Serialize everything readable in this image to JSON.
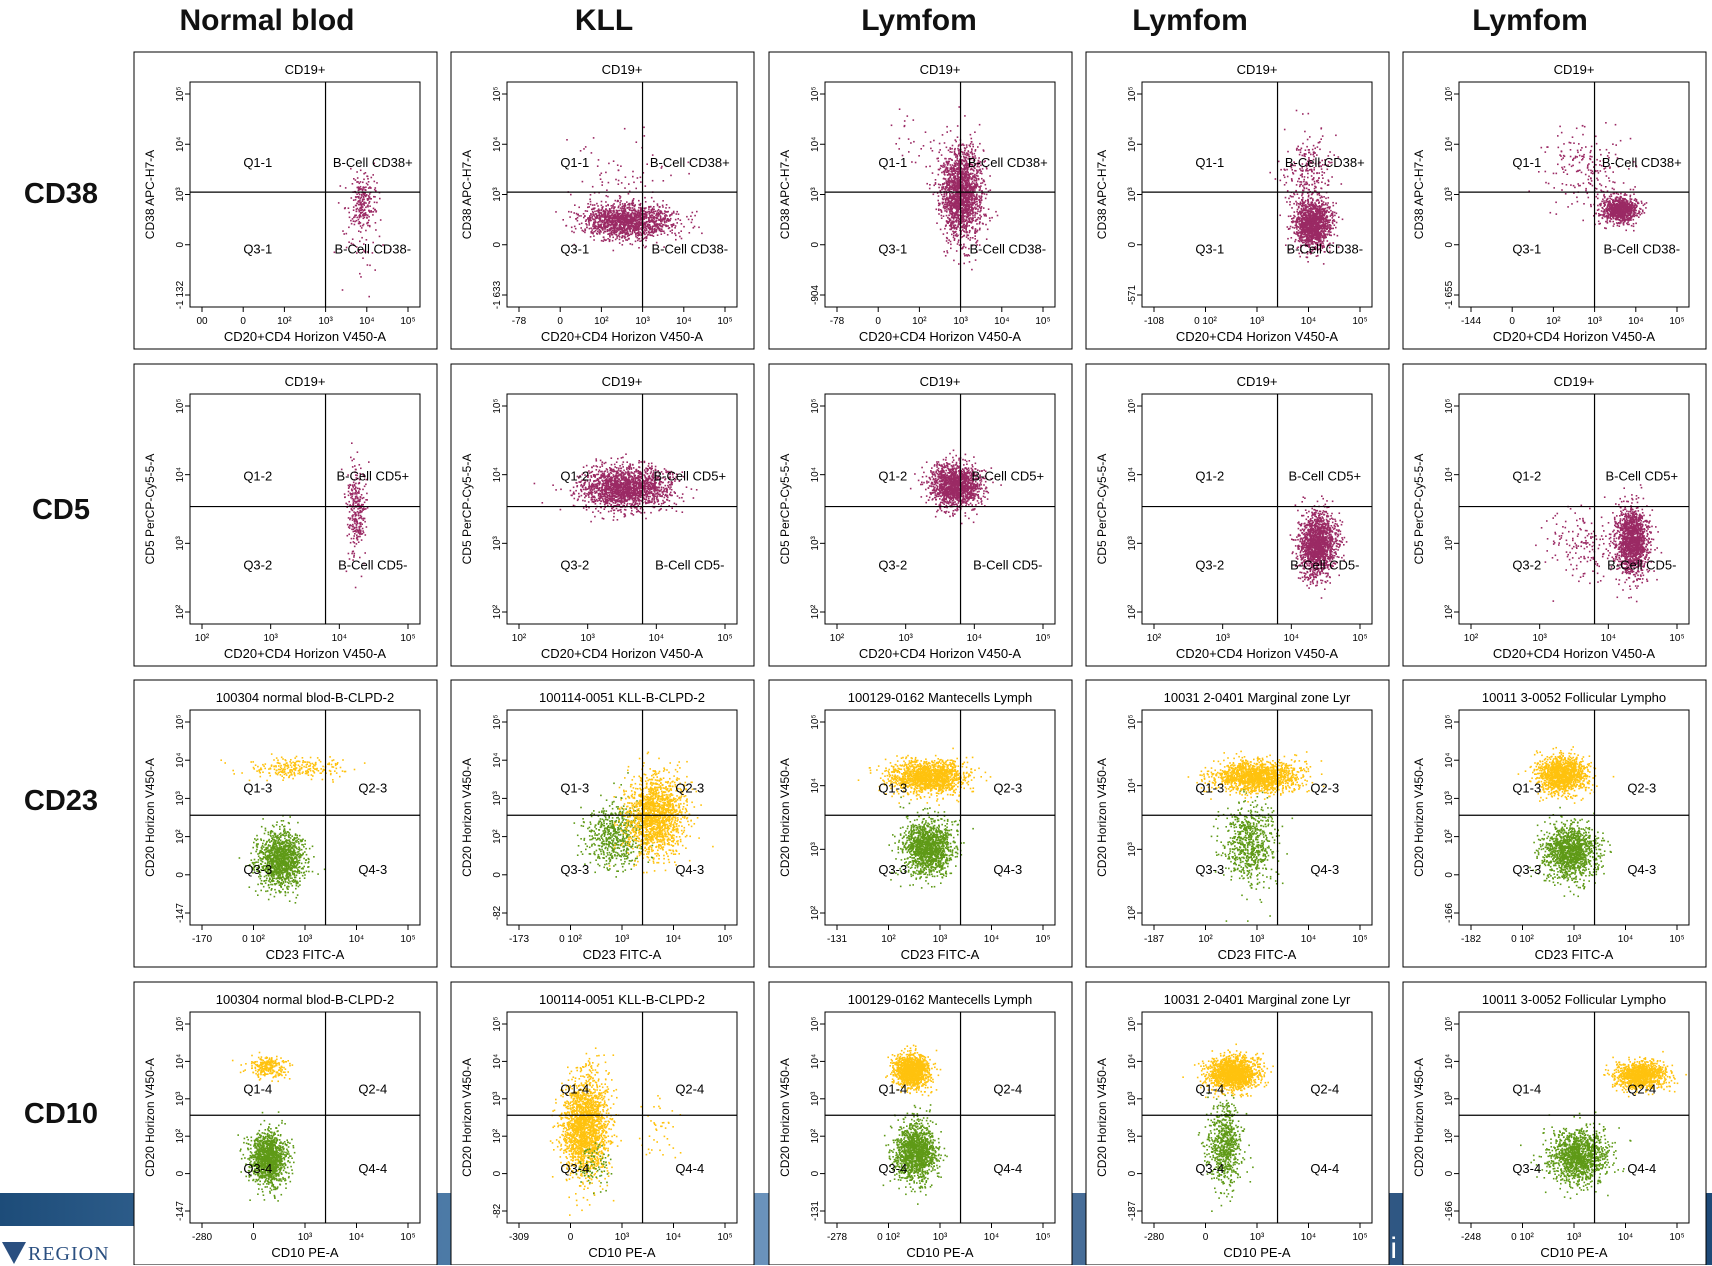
{
  "column_titles": [
    "Normal blod",
    "KLL",
    "Lymfom",
    "Lymfom",
    "Lymfom"
  ],
  "row_titles": [
    "CD38",
    "CD5",
    "CD23",
    "CD10"
  ],
  "footer": {
    "logo_text": "REGION",
    "right_text": "ti"
  },
  "colors": {
    "purple": "#9b2a64",
    "yellow": "#ffc20e",
    "green": "#5f9a17",
    "line": "#000000"
  },
  "chart_data": [
    {
      "type": "scatter",
      "row": "CD38",
      "column": "Normal blod",
      "title": "CD19+",
      "xlabel": "CD20+CD4 Horizon V450-A",
      "ylabel": "CD38 APC-H7-A",
      "x_ticks": [
        "00",
        "0",
        "10²",
        "10³",
        "10⁴",
        "10⁵"
      ],
      "y_ticks": [
        "-1 132",
        "0",
        "10³",
        "10⁴",
        "10⁵"
      ],
      "gate": [
        "Q1-1",
        "B-Cell CD38+",
        "Q3-1",
        "B-Cell CD38-"
      ],
      "series": [
        {
          "color": "purple",
          "clusters": [
            {
              "x": 3.9,
              "y": 2.85,
              "sx": 0.15,
              "sy": 0.3,
              "n": 220
            },
            {
              "x": 3.8,
              "y": 2.2,
              "sx": 0.25,
              "sy": 0.4,
              "n": 60
            }
          ]
        }
      ]
    },
    {
      "type": "scatter",
      "row": "CD38",
      "column": "KLL",
      "title": "CD19+",
      "xlabel": "CD20+CD4 Horizon V450-A",
      "ylabel": "CD38 APC-H7-A",
      "x_ticks": [
        "-78",
        "0",
        "10²",
        "10³",
        "10⁴",
        "10⁵"
      ],
      "y_ticks": [
        "-1 633",
        "0",
        "10³",
        "10⁴",
        "10⁵"
      ],
      "gate": [
        "Q1-1",
        "B-Cell CD38+",
        "Q3-1",
        "B-Cell CD38-"
      ],
      "series": [
        {
          "color": "purple",
          "clusters": [
            {
              "x": 2.6,
              "y": 2.4,
              "sx": 0.55,
              "sy": 0.18,
              "n": 1500
            },
            {
              "x": 2.4,
              "y": 3.2,
              "sx": 0.7,
              "sy": 0.5,
              "n": 90
            }
          ]
        }
      ]
    },
    {
      "type": "scatter",
      "row": "CD38",
      "column": "Lymfom",
      "title": "CD19+",
      "xlabel": "CD20+CD4 Horizon V450-A",
      "ylabel": "CD38 APC-H7-A",
      "x_ticks": [
        "-78",
        "0",
        "10²",
        "10³",
        "10⁴",
        "10⁵"
      ],
      "y_ticks": [
        "-904",
        "0",
        "10³",
        "10⁴",
        "10⁵"
      ],
      "gate": [
        "Q1-1",
        "B-Cell CD38+",
        "Q3-1",
        "B-Cell CD38-"
      ],
      "series": [
        {
          "color": "purple",
          "clusters": [
            {
              "x": 3.0,
              "y": 3.0,
              "sx": 0.26,
              "sy": 0.48,
              "n": 1800
            },
            {
              "x": 1.8,
              "y": 4.1,
              "sx": 0.3,
              "sy": 0.3,
              "n": 25
            }
          ]
        }
      ]
    },
    {
      "type": "scatter",
      "row": "CD38",
      "column": "Lymfom",
      "title": "CD19+",
      "xlabel": "CD20+CD4 Horizon V450-A",
      "ylabel": "CD38 APC-H7-A",
      "x_ticks": [
        "-108",
        "0 10²",
        "10³",
        "10⁴",
        "10⁵"
      ],
      "y_ticks": [
        "-571",
        "0",
        "10³",
        "10⁴",
        "10⁵"
      ],
      "gate": [
        "Q1-1",
        "B-Cell CD38+",
        "Q3-1",
        "B-Cell CD38-"
      ],
      "series": [
        {
          "color": "purple",
          "clusters": [
            {
              "x": 3.85,
              "y": 2.35,
              "sx": 0.22,
              "sy": 0.25,
              "n": 1400
            },
            {
              "x": 3.7,
              "y": 3.4,
              "sx": 0.28,
              "sy": 0.45,
              "n": 260
            }
          ]
        }
      ]
    },
    {
      "type": "scatter",
      "row": "CD38",
      "column": "Lymfom",
      "title": "CD19+",
      "xlabel": "CD20+CD4 Horizon V450-A",
      "ylabel": "CD38 APC-H7-A",
      "x_ticks": [
        "-144",
        "0",
        "10²",
        "10³",
        "10⁴",
        "10⁵"
      ],
      "y_ticks": [
        "-1 655",
        "0",
        "10³",
        "10⁴",
        "10⁵"
      ],
      "gate": [
        "Q1-1",
        "B-Cell CD38+",
        "Q3-1",
        "B-Cell CD38-"
      ],
      "series": [
        {
          "color": "purple",
          "clusters": [
            {
              "x": 3.6,
              "y": 2.65,
              "sx": 0.22,
              "sy": 0.14,
              "n": 900
            },
            {
              "x": 2.8,
              "y": 3.5,
              "sx": 0.55,
              "sy": 0.45,
              "n": 200
            }
          ]
        }
      ]
    },
    {
      "type": "scatter",
      "row": "CD5",
      "column": "Normal blod",
      "title": "CD19+",
      "xlabel": "CD20+CD4 Horizon V450-A",
      "ylabel": "CD5 PerCP-Cy5-5-A",
      "x_ticks": [
        "10²",
        "10³",
        "10⁴",
        "10⁵"
      ],
      "y_ticks": [
        "10²",
        "10³",
        "10⁴",
        "10⁵"
      ],
      "gate": [
        "Q1-2",
        "B-Cell CD5+",
        "Q3-2",
        "B-Cell CD5-"
      ],
      "series": [
        {
          "color": "purple",
          "clusters": [
            {
              "x": 3.75,
              "y": 2.9,
              "sx": 0.12,
              "sy": 0.45,
              "n": 300
            }
          ]
        }
      ]
    },
    {
      "type": "scatter",
      "row": "CD5",
      "column": "KLL",
      "title": "CD19+",
      "xlabel": "CD20+CD4 Horizon V450-A",
      "ylabel": "CD5 PerCP-Cy5-5-A",
      "x_ticks": [
        "10²",
        "10³",
        "10⁴",
        "10⁵"
      ],
      "y_ticks": [
        "10²",
        "10³",
        "10⁴",
        "10⁵"
      ],
      "gate": [
        "Q1-2",
        "B-Cell CD5+",
        "Q3-2",
        "B-Cell CD5-"
      ],
      "series": [
        {
          "color": "purple",
          "clusters": [
            {
              "x": 2.55,
              "y": 3.4,
              "sx": 0.55,
              "sy": 0.22,
              "n": 1800
            }
          ]
        }
      ]
    },
    {
      "type": "scatter",
      "row": "CD5",
      "column": "Lymfom",
      "title": "CD19+",
      "xlabel": "CD20+CD4 Horizon V450-A",
      "ylabel": "CD5 PerCP-Cy5-5-A",
      "x_ticks": [
        "10²",
        "10³",
        "10⁴",
        "10⁵"
      ],
      "y_ticks": [
        "10²",
        "10³",
        "10⁴",
        "10⁵"
      ],
      "gate": [
        "Q1-2",
        "B-Cell CD5+",
        "Q3-2",
        "B-Cell CD5-"
      ],
      "series": [
        {
          "color": "purple",
          "clusters": [
            {
              "x": 2.85,
              "y": 3.45,
              "sx": 0.3,
              "sy": 0.22,
              "n": 1500
            }
          ]
        }
      ]
    },
    {
      "type": "scatter",
      "row": "CD5",
      "column": "Lymfom",
      "title": "CD19+",
      "xlabel": "CD20+CD4 Horizon V450-A",
      "ylabel": "CD5 PerCP-Cy5-5-A",
      "x_ticks": [
        "10²",
        "10³",
        "10⁴",
        "10⁵"
      ],
      "y_ticks": [
        "10²",
        "10³",
        "10⁴",
        "10⁵"
      ],
      "gate": [
        "Q1-2",
        "B-Cell CD5+",
        "Q3-2",
        "B-Cell CD5-"
      ],
      "series": [
        {
          "color": "purple",
          "clusters": [
            {
              "x": 3.95,
              "y": 2.25,
              "sx": 0.22,
              "sy": 0.32,
              "n": 1600
            }
          ]
        }
      ]
    },
    {
      "type": "scatter",
      "row": "CD5",
      "column": "Lymfom",
      "title": "CD19+",
      "xlabel": "CD20+CD4 Horizon V450-A",
      "ylabel": "CD5 PerCP-Cy5-5-A",
      "x_ticks": [
        "10²",
        "10³",
        "10⁴",
        "10⁵"
      ],
      "y_ticks": [
        "10²",
        "10³",
        "10⁴",
        "10⁵"
      ],
      "gate": [
        "Q1-2",
        "B-Cell CD5+",
        "Q3-2",
        "B-Cell CD5-"
      ],
      "series": [
        {
          "color": "purple",
          "clusters": [
            {
              "x": 3.9,
              "y": 2.3,
              "sx": 0.2,
              "sy": 0.35,
              "n": 1400
            },
            {
              "x": 2.7,
              "y": 2.3,
              "sx": 0.4,
              "sy": 0.35,
              "n": 160
            }
          ]
        }
      ]
    },
    {
      "type": "scatter",
      "row": "CD23",
      "column": "Normal blod",
      "title": "100304 normal blod-B-CLPD-2",
      "xlabel": "CD23 FITC-A",
      "ylabel": "CD20 Horizon V450-A",
      "x_ticks": [
        "-170",
        "0 10²",
        "10³",
        "10⁴",
        "10⁵"
      ],
      "y_ticks": [
        "-147",
        "0",
        "10²",
        "10³",
        "10⁴",
        "10⁵"
      ],
      "gate": [
        "Q1-3",
        "Q2-3",
        "Q3-3",
        "Q4-3"
      ],
      "series": [
        {
          "color": "green",
          "clusters": [
            {
              "x": 1.9,
              "y": 2.05,
              "sx": 0.28,
              "sy": 0.3,
              "n": 1300
            }
          ]
        },
        {
          "color": "yellow",
          "clusters": [
            {
              "x": 2.2,
              "y": 4.05,
              "sx": 0.6,
              "sy": 0.12,
              "n": 250
            }
          ]
        }
      ]
    },
    {
      "type": "scatter",
      "row": "CD23",
      "column": "KLL",
      "title": "100114-0051 KLL-B-CLPD-2",
      "xlabel": "CD23 FITC-A",
      "ylabel": "CD20 Horizon V450-A",
      "x_ticks": [
        "-173",
        "0 10²",
        "10³",
        "10⁴",
        "10⁵"
      ],
      "y_ticks": [
        "-82",
        "0",
        "10²",
        "10³",
        "10⁴",
        "10⁵"
      ],
      "gate": [
        "Q1-3",
        "Q2-3",
        "Q3-3",
        "Q4-3"
      ],
      "series": [
        {
          "color": "green",
          "clusters": [
            {
              "x": 2.3,
              "y": 2.55,
              "sx": 0.35,
              "sy": 0.35,
              "n": 600
            }
          ]
        },
        {
          "color": "yellow",
          "clusters": [
            {
              "x": 3.3,
              "y": 3.0,
              "sx": 0.35,
              "sy": 0.42,
              "n": 1600
            }
          ]
        }
      ]
    },
    {
      "type": "scatter",
      "row": "CD23",
      "column": "Lymfom",
      "title": "100129-0162 Mantecells Lymph",
      "xlabel": "CD23 FITC-A",
      "ylabel": "CD20 Horizon V450-A",
      "x_ticks": [
        "-131",
        "10²",
        "10³",
        "10⁴",
        "10⁵"
      ],
      "y_ticks": [
        "10²",
        "10³",
        "10⁴",
        "10⁵"
      ],
      "gate": [
        "Q1-3",
        "Q2-3",
        "Q3-3",
        "Q4-3"
      ],
      "series": [
        {
          "color": "green",
          "clusters": [
            {
              "x": 2.2,
              "y": 2.3,
              "sx": 0.3,
              "sy": 0.3,
              "n": 1400
            }
          ]
        },
        {
          "color": "yellow",
          "clusters": [
            {
              "x": 2.2,
              "y": 3.85,
              "sx": 0.45,
              "sy": 0.18,
              "n": 1500
            }
          ]
        }
      ]
    },
    {
      "type": "scatter",
      "row": "CD23",
      "column": "Lymfom",
      "title": "10031 2-0401 Marginal zone Lyr",
      "xlabel": "CD23 FITC-A",
      "ylabel": "CD20 Horizon V450-A",
      "x_ticks": [
        "-187",
        "10²",
        "10³",
        "10⁴",
        "10⁵"
      ],
      "y_ticks": [
        "10²",
        "10³",
        "10⁴",
        "10⁵"
      ],
      "gate": [
        "Q1-3",
        "Q2-3",
        "Q3-3",
        "Q4-3"
      ],
      "series": [
        {
          "color": "green",
          "clusters": [
            {
              "x": 2.3,
              "y": 2.4,
              "sx": 0.3,
              "sy": 0.45,
              "n": 700
            }
          ]
        },
        {
          "color": "yellow",
          "clusters": [
            {
              "x": 2.5,
              "y": 3.85,
              "sx": 0.5,
              "sy": 0.17,
              "n": 1500
            }
          ]
        }
      ]
    },
    {
      "type": "scatter",
      "row": "CD23",
      "column": "Lymfom",
      "title": "10011 3-0052 Follicular Lympho",
      "xlabel": "CD23 FITC-A",
      "ylabel": "CD20 Horizon V450-A",
      "x_ticks": [
        "-182",
        "0 10²",
        "10³",
        "10⁴",
        "10⁵"
      ],
      "y_ticks": [
        "-166",
        "0",
        "10²",
        "10³",
        "10⁴",
        "10⁵"
      ],
      "gate": [
        "Q1-3",
        "Q2-3",
        "Q3-3",
        "Q4-3"
      ],
      "series": [
        {
          "color": "green",
          "clusters": [
            {
              "x": 2.4,
              "y": 2.2,
              "sx": 0.32,
              "sy": 0.3,
              "n": 1300
            }
          ]
        },
        {
          "color": "yellow",
          "clusters": [
            {
              "x": 2.2,
              "y": 3.9,
              "sx": 0.3,
              "sy": 0.2,
              "n": 1300
            }
          ]
        }
      ]
    },
    {
      "type": "scatter",
      "row": "CD10",
      "column": "Normal blod",
      "title": "100304 normal blod-B-CLPD-2",
      "xlabel": "CD10 PE-A",
      "ylabel": "CD20 Horizon V450-A",
      "x_ticks": [
        "-280",
        "0",
        "10³",
        "10⁴",
        "10⁵"
      ],
      "y_ticks": [
        "-147",
        "0",
        "10²",
        "10³",
        "10⁴",
        "10⁵"
      ],
      "gate": [
        "Q1-4",
        "Q2-4",
        "Q3-4",
        "Q4-4"
      ],
      "series": [
        {
          "color": "green",
          "clusters": [
            {
              "x": 1.6,
              "y": 2.05,
              "sx": 0.22,
              "sy": 0.3,
              "n": 1300
            }
          ]
        },
        {
          "color": "yellow",
          "clusters": [
            {
              "x": 1.6,
              "y": 4.1,
              "sx": 0.25,
              "sy": 0.12,
              "n": 250
            }
          ]
        }
      ]
    },
    {
      "type": "scatter",
      "row": "CD10",
      "column": "KLL",
      "title": "100114-0051 KLL-B-CLPD-2",
      "xlabel": "CD10 PE-A",
      "ylabel": "CD20 Horizon V450-A",
      "x_ticks": [
        "-309",
        "0",
        "10³",
        "10⁴",
        "10⁵"
      ],
      "y_ticks": [
        "-82",
        "0",
        "10²",
        "10³",
        "10⁴",
        "10⁵"
      ],
      "gate": [
        "Q1-4",
        "Q2-4",
        "Q3-4",
        "Q4-4"
      ],
      "series": [
        {
          "color": "yellow",
          "clusters": [
            {
              "x": 1.6,
              "y": 2.75,
              "sx": 0.28,
              "sy": 0.55,
              "n": 2000
            },
            {
              "x": 3.4,
              "y": 2.7,
              "sx": 0.25,
              "sy": 0.4,
              "n": 40
            }
          ]
        },
        {
          "color": "green",
          "clusters": [
            {
              "x": 1.8,
              "y": 1.9,
              "sx": 0.2,
              "sy": 0.3,
              "n": 80
            }
          ]
        }
      ]
    },
    {
      "type": "scatter",
      "row": "CD10",
      "column": "Lymfom",
      "title": "100129-0162 Mantecells Lymph",
      "xlabel": "CD10 PE-A",
      "ylabel": "CD20 Horizon V450-A",
      "x_ticks": [
        "-278",
        "0 10²",
        "10³",
        "10⁴",
        "10⁵"
      ],
      "y_ticks": [
        "-131",
        "0",
        "10²",
        "10³",
        "10⁴",
        "10⁵"
      ],
      "gate": [
        "Q1-4",
        "Q2-4",
        "Q3-4",
        "Q4-4"
      ],
      "series": [
        {
          "color": "green",
          "clusters": [
            {
              "x": 1.9,
              "y": 2.2,
              "sx": 0.25,
              "sy": 0.32,
              "n": 1400
            }
          ]
        },
        {
          "color": "yellow",
          "clusters": [
            {
              "x": 1.8,
              "y": 4.0,
              "sx": 0.2,
              "sy": 0.18,
              "n": 1300
            }
          ]
        }
      ]
    },
    {
      "type": "scatter",
      "row": "CD10",
      "column": "Lymfom",
      "title": "10031 2-0401 Marginal zone Lyr",
      "xlabel": "CD10 PE-A",
      "ylabel": "CD20 Horizon V450-A",
      "x_ticks": [
        "-280",
        "0",
        "10³",
        "10⁴",
        "10⁵"
      ],
      "y_ticks": [
        "-187",
        "0",
        "10²",
        "10³",
        "10⁴",
        "10⁵"
      ],
      "gate": [
        "Q1-4",
        "Q2-4",
        "Q3-4",
        "Q4-4"
      ],
      "series": [
        {
          "color": "green",
          "clusters": [
            {
              "x": 1.7,
              "y": 2.35,
              "sx": 0.2,
              "sy": 0.45,
              "n": 700
            }
          ]
        },
        {
          "color": "yellow",
          "clusters": [
            {
              "x": 1.9,
              "y": 3.95,
              "sx": 0.3,
              "sy": 0.18,
              "n": 1500
            }
          ]
        }
      ]
    },
    {
      "type": "scatter",
      "row": "CD10",
      "column": "Lymfom",
      "title": "10011 3-0052 Follicular Lympho",
      "xlabel": "CD10 PE-A",
      "ylabel": "CD20 Horizon V450-A",
      "x_ticks": [
        "-248",
        "0 10²",
        "10³",
        "10⁴",
        "10⁵"
      ],
      "y_ticks": [
        "-166",
        "0",
        "10²",
        "10³",
        "10⁴",
        "10⁵"
      ],
      "gate": [
        "Q1-4",
        "Q2-4",
        "Q3-4",
        "Q4-4"
      ],
      "series": [
        {
          "color": "green",
          "clusters": [
            {
              "x": 2.6,
              "y": 2.1,
              "sx": 0.35,
              "sy": 0.3,
              "n": 1300
            }
          ]
        },
        {
          "color": "yellow",
          "clusters": [
            {
              "x": 4.1,
              "y": 3.9,
              "sx": 0.3,
              "sy": 0.15,
              "n": 1100
            }
          ]
        }
      ]
    }
  ]
}
